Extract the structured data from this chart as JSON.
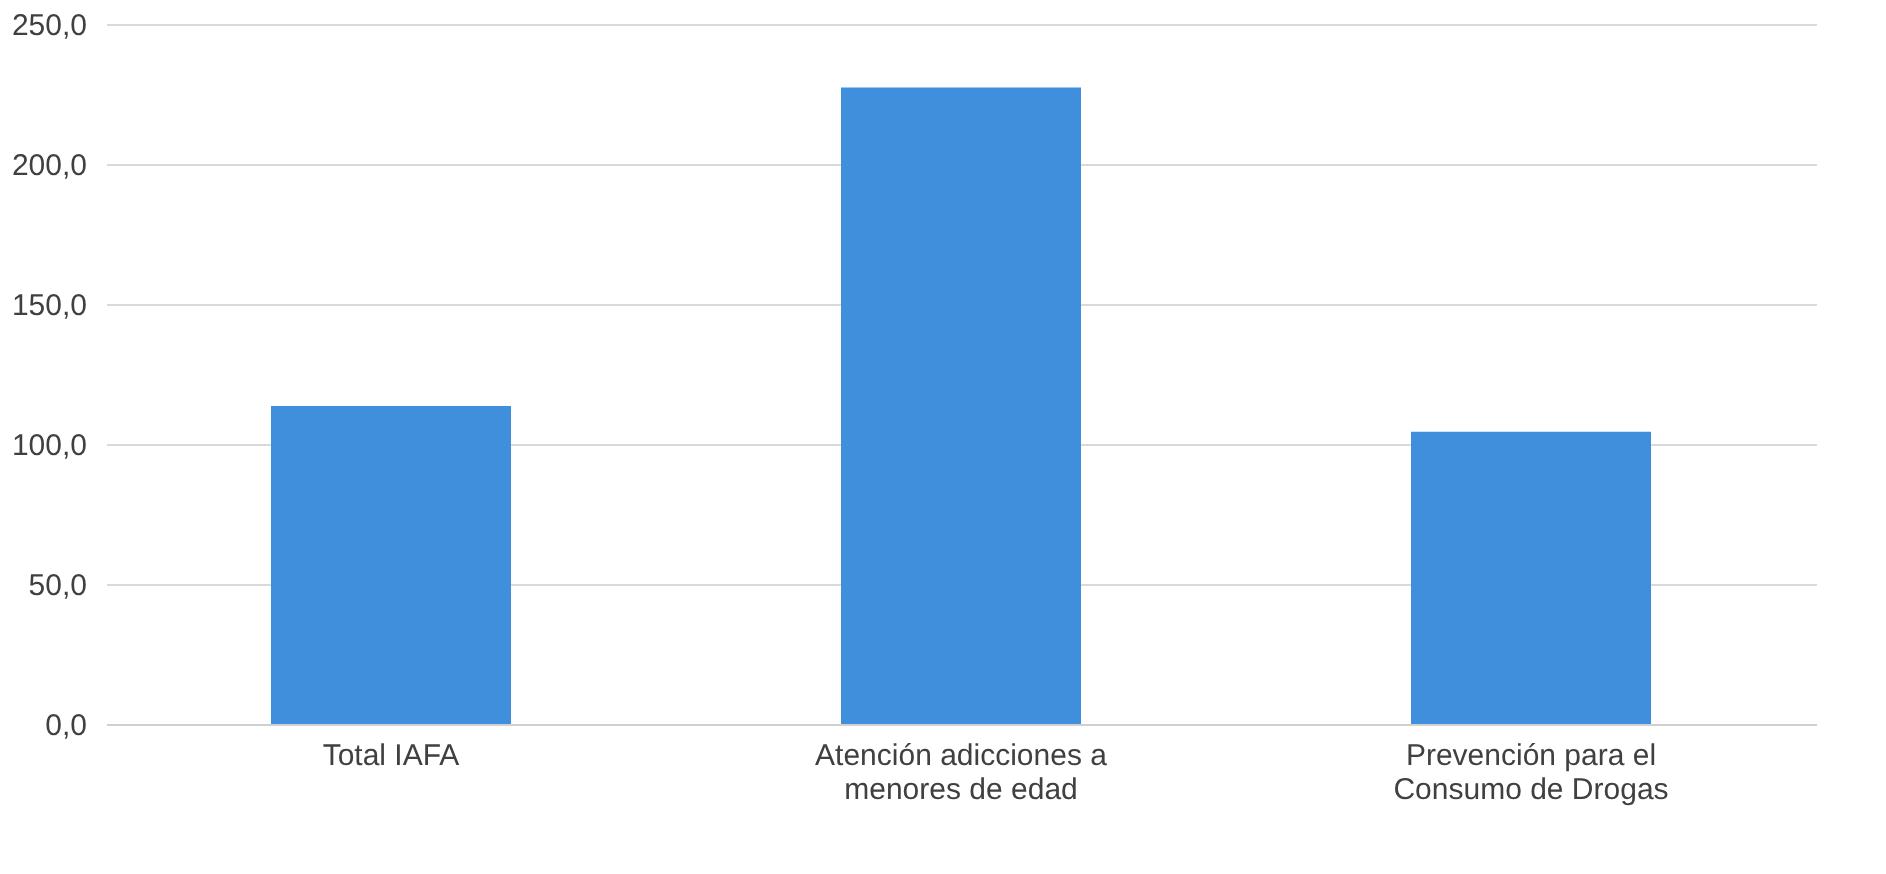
{
  "chart_data": {
    "type": "bar",
    "categories": [
      "Total IAFA",
      "Atención adicciones a menores de edad",
      "Prevención para el Consumo de Drogas"
    ],
    "series": [
      {
        "color": "#3f8fdc",
        "values": [
          113.6,
          227.3,
          104.4
        ]
      }
    ],
    "ylim": [
      0,
      250
    ],
    "yticks": [
      {
        "value": 0,
        "label": "0,0"
      },
      {
        "value": 50,
        "label": "50,0"
      },
      {
        "value": 100,
        "label": "100,0"
      },
      {
        "value": 150,
        "label": "150,0"
      },
      {
        "value": 200,
        "label": "200,0"
      },
      {
        "value": 250,
        "label": "250,0"
      }
    ],
    "grid": "y"
  }
}
